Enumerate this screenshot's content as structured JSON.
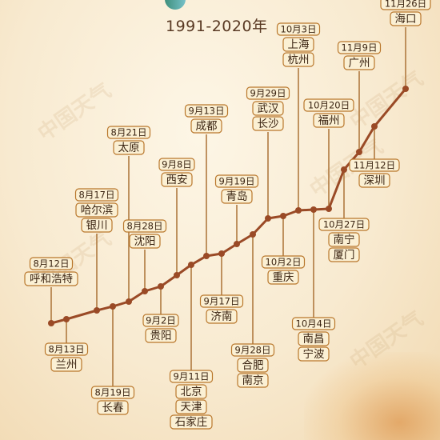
{
  "subtitle": "1991-2020年",
  "watermark": "中国天气",
  "colors": {
    "line": "#9a4a26",
    "label_bg": "#fbf0d4",
    "label_border": "#b9772c",
    "text": "#3b2412",
    "stem": "#b07a40"
  },
  "chart_data": {
    "type": "line",
    "title": "",
    "subtitle": "1991-2020年",
    "xlabel": "",
    "ylabel": "",
    "points": [
      {
        "date": "8月12日",
        "cities": [
          "呼和浩特"
        ]
      },
      {
        "date": "8月13日",
        "cities": [
          "兰州"
        ]
      },
      {
        "date": "8月17日",
        "cities": [
          "哈尔滨",
          "银川"
        ]
      },
      {
        "date": "8月19日",
        "cities": [
          "长春"
        ]
      },
      {
        "date": "8月21日",
        "cities": [
          "太原"
        ]
      },
      {
        "date": "8月28日",
        "cities": [
          "沈阳"
        ]
      },
      {
        "date": "9月2日",
        "cities": [
          "贵阳"
        ]
      },
      {
        "date": "9月8日",
        "cities": [
          "西安"
        ]
      },
      {
        "date": "9月11日",
        "cities": [
          "北京",
          "天津",
          "石家庄"
        ]
      },
      {
        "date": "9月13日",
        "cities": [
          "成都"
        ]
      },
      {
        "date": "9月17日",
        "cities": [
          "济南"
        ]
      },
      {
        "date": "9月19日",
        "cities": [
          "青岛"
        ]
      },
      {
        "date": "9月28日",
        "cities": [
          "合肥",
          "南京"
        ]
      },
      {
        "date": "9月29日",
        "cities": [
          "武汉",
          "长沙"
        ]
      },
      {
        "date": "10月2日",
        "cities": [
          "重庆"
        ]
      },
      {
        "date": "10月3日",
        "cities": [
          "上海",
          "杭州"
        ]
      },
      {
        "date": "10月4日",
        "cities": [
          "南昌",
          "宁波"
        ]
      },
      {
        "date": "10月20日",
        "cities": [
          "福州"
        ]
      },
      {
        "date": "10月27日",
        "cities": [
          "南宁",
          "厦门"
        ]
      },
      {
        "date": "11月9日",
        "cities": [
          "广州"
        ]
      },
      {
        "date": "11月12日",
        "cities": [
          "深圳"
        ]
      },
      {
        "date": "11月26日",
        "cities": [
          "海口"
        ]
      }
    ]
  }
}
